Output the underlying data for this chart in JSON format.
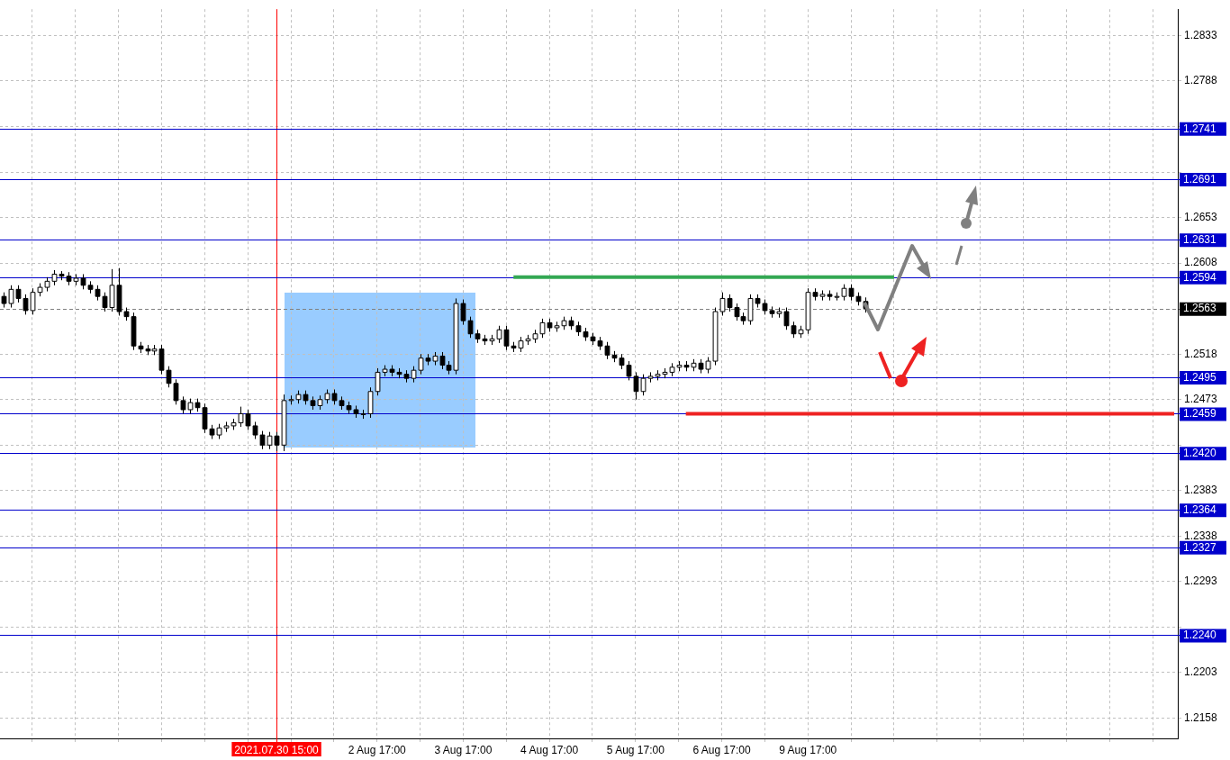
{
  "chart_data": {
    "type": "candlestick",
    "categories": [
      null,
      null,
      null,
      null,
      null,
      null,
      null,
      null,
      null,
      null,
      null,
      null,
      null,
      null,
      null,
      null,
      null,
      null,
      null,
      null,
      null,
      null,
      null,
      null,
      null,
      null,
      null,
      null,
      null,
      null,
      null,
      null,
      null,
      null,
      null,
      null,
      null,
      null,
      "2021.07.30 15:00",
      null,
      null,
      null,
      null,
      null,
      null,
      null,
      null,
      null,
      null,
      null,
      null,
      null,
      "2 Aug 17:00",
      null,
      null,
      null,
      null,
      null,
      null,
      null,
      null,
      null,
      null,
      null,
      "3 Aug 17:00",
      null,
      null,
      null,
      null,
      null,
      null,
      null,
      null,
      null,
      null,
      null,
      "4 Aug 17:00",
      null,
      null,
      null,
      null,
      null,
      null,
      null,
      null,
      null,
      null,
      null,
      "5 Aug 17:00",
      null,
      null,
      null,
      null,
      null,
      null,
      null,
      null,
      null,
      null,
      null,
      "6 Aug 17:00",
      null,
      null,
      null,
      null,
      null,
      null,
      null,
      null,
      null,
      null,
      null,
      "9 Aug 17:00",
      null,
      null,
      null,
      null,
      null,
      null,
      null,
      null,
      null,
      null,
      null,
      null,
      null,
      null,
      null,
      null,
      null,
      null,
      null,
      null,
      null,
      null,
      null,
      null,
      null,
      null,
      null,
      null,
      null,
      null,
      null,
      null,
      null,
      null,
      null,
      null,
      null,
      null,
      null,
      null,
      null,
      null,
      null,
      null,
      null,
      null,
      null,
      null,
      null,
      null,
      null
    ],
    "ohlc": [
      [
        1.2575,
        1.2579,
        1.2564,
        1.2568
      ],
      [
        1.2568,
        1.2586,
        1.2564,
        1.2582
      ],
      [
        1.2582,
        1.2586,
        1.2569,
        1.2573
      ],
      [
        1.2573,
        1.2577,
        1.2557,
        1.2561
      ],
      [
        1.2561,
        1.2583,
        1.2557,
        1.2579
      ],
      [
        1.2579,
        1.2588,
        1.2575,
        1.2584
      ],
      [
        1.2584,
        1.2594,
        1.258,
        1.259
      ],
      [
        1.259,
        1.2601,
        1.2586,
        1.2597
      ],
      [
        1.2597,
        1.26,
        1.2591,
        1.2595
      ],
      [
        1.2595,
        1.2599,
        1.2586,
        1.259
      ],
      [
        1.259,
        1.2597,
        1.2586,
        1.2593
      ],
      [
        1.2593,
        1.2597,
        1.2582,
        1.2586
      ],
      [
        1.2586,
        1.259,
        1.2578,
        1.2582
      ],
      [
        1.2582,
        1.2586,
        1.2571,
        1.2575
      ],
      [
        1.2575,
        1.2579,
        1.256,
        1.2564
      ],
      [
        1.2564,
        1.2602,
        1.256,
        1.2586
      ],
      [
        1.2586,
        1.2603,
        1.2556,
        1.256
      ],
      [
        1.256,
        1.2564,
        1.2551,
        1.2555
      ],
      [
        1.2555,
        1.2559,
        1.2522,
        1.2526
      ],
      [
        1.2526,
        1.253,
        1.2519,
        1.2523
      ],
      [
        1.2523,
        1.2527,
        1.2517,
        1.2521
      ],
      [
        1.2521,
        1.2527,
        1.2517,
        1.2523
      ],
      [
        1.2523,
        1.2527,
        1.2498,
        1.2502
      ],
      [
        1.2502,
        1.2506,
        1.2485,
        1.2489
      ],
      [
        1.2489,
        1.2493,
        1.2468,
        1.2472
      ],
      [
        1.2472,
        1.2476,
        1.2459,
        1.2463
      ],
      [
        1.2463,
        1.2474,
        1.2459,
        1.247
      ],
      [
        1.247,
        1.2474,
        1.2461,
        1.2465
      ],
      [
        1.2465,
        1.2469,
        1.244,
        1.2444
      ],
      [
        1.2444,
        1.2448,
        1.2434,
        1.2438
      ],
      [
        1.2438,
        1.2449,
        1.2434,
        1.2445
      ],
      [
        1.2445,
        1.2451,
        1.2441,
        1.2447
      ],
      [
        1.2447,
        1.2454,
        1.2443,
        1.245
      ],
      [
        1.245,
        1.2466,
        1.2446,
        1.2459
      ],
      [
        1.2459,
        1.2463,
        1.2443,
        1.2447
      ],
      [
        1.2447,
        1.2451,
        1.2434,
        1.2438
      ],
      [
        1.2438,
        1.2442,
        1.2424,
        1.2428
      ],
      [
        1.2428,
        1.2441,
        1.2424,
        1.2437
      ],
      [
        1.2437,
        1.2441,
        1.2422,
        1.2428
      ],
      [
        1.2428,
        1.2478,
        1.2422,
        1.2472
      ],
      [
        1.2472,
        1.2477,
        1.2468,
        1.2473
      ],
      [
        1.2473,
        1.2482,
        1.2469,
        1.2478
      ],
      [
        1.2478,
        1.2482,
        1.2468,
        1.2472
      ],
      [
        1.2472,
        1.2476,
        1.2463,
        1.2467
      ],
      [
        1.2467,
        1.2477,
        1.2463,
        1.2473
      ],
      [
        1.2473,
        1.2483,
        1.2469,
        1.2479
      ],
      [
        1.2479,
        1.2483,
        1.2468,
        1.2472
      ],
      [
        1.2472,
        1.2476,
        1.2463,
        1.2467
      ],
      [
        1.2467,
        1.2471,
        1.2459,
        1.2463
      ],
      [
        1.2463,
        1.2467,
        1.2455,
        1.2459
      ],
      [
        1.2459,
        1.2463,
        1.2454,
        1.2459
      ],
      [
        1.2459,
        1.2485,
        1.2455,
        1.2481
      ],
      [
        1.2481,
        1.2504,
        1.2477,
        1.25
      ],
      [
        1.25,
        1.2507,
        1.2496,
        1.2503
      ],
      [
        1.2503,
        1.2507,
        1.2496,
        1.25
      ],
      [
        1.25,
        1.2504,
        1.2494,
        1.2498
      ],
      [
        1.2498,
        1.2502,
        1.249,
        1.2494
      ],
      [
        1.2494,
        1.2506,
        1.249,
        1.2502
      ],
      [
        1.2502,
        1.2518,
        1.2498,
        1.2514
      ],
      [
        1.2514,
        1.2518,
        1.2507,
        1.2511
      ],
      [
        1.2511,
        1.252,
        1.2507,
        1.2516
      ],
      [
        1.2516,
        1.252,
        1.2503,
        1.2507
      ],
      [
        1.2507,
        1.2511,
        1.2498,
        1.2502
      ],
      [
        1.2502,
        1.2573,
        1.2498,
        1.2568
      ],
      [
        1.2568,
        1.2572,
        1.2547,
        1.2551
      ],
      [
        1.2551,
        1.2555,
        1.2534,
        1.2538
      ],
      [
        1.2538,
        1.2542,
        1.2529,
        1.2533
      ],
      [
        1.2533,
        1.2537,
        1.2527,
        1.2531
      ],
      [
        1.2531,
        1.2537,
        1.2527,
        1.2533
      ],
      [
        1.2533,
        1.2546,
        1.2529,
        1.2542
      ],
      [
        1.2542,
        1.2546,
        1.2522,
        1.2526
      ],
      [
        1.2526,
        1.253,
        1.252,
        1.2524
      ],
      [
        1.2524,
        1.2535,
        1.252,
        1.2531
      ],
      [
        1.2531,
        1.2537,
        1.2527,
        1.2533
      ],
      [
        1.2533,
        1.2542,
        1.2529,
        1.2538
      ],
      [
        1.2538,
        1.2553,
        1.2534,
        1.2549
      ],
      [
        1.2549,
        1.2553,
        1.254,
        1.2544
      ],
      [
        1.2544,
        1.255,
        1.254,
        1.2546
      ],
      [
        1.2546,
        1.2555,
        1.2542,
        1.2551
      ],
      [
        1.2551,
        1.2555,
        1.2542,
        1.2546
      ],
      [
        1.2546,
        1.255,
        1.2536,
        1.254
      ],
      [
        1.254,
        1.2544,
        1.2531,
        1.2535
      ],
      [
        1.2535,
        1.2539,
        1.2527,
        1.2531
      ],
      [
        1.2531,
        1.2535,
        1.2522,
        1.2526
      ],
      [
        1.2526,
        1.253,
        1.2513,
        1.2517
      ],
      [
        1.2517,
        1.2521,
        1.251,
        1.2514
      ],
      [
        1.2514,
        1.2518,
        1.2503,
        1.2507
      ],
      [
        1.2507,
        1.2511,
        1.2492,
        1.2496
      ],
      [
        1.2496,
        1.25,
        1.2473,
        1.2481
      ],
      [
        1.2481,
        1.2498,
        1.2477,
        1.2494
      ],
      [
        1.2494,
        1.25,
        1.249,
        1.2496
      ],
      [
        1.2496,
        1.2502,
        1.2492,
        1.2498
      ],
      [
        1.2498,
        1.2504,
        1.2494,
        1.25
      ],
      [
        1.25,
        1.2509,
        1.2496,
        1.2505
      ],
      [
        1.2505,
        1.2511,
        1.2501,
        1.2507
      ],
      [
        1.2507,
        1.2511,
        1.2501,
        1.2505
      ],
      [
        1.2505,
        1.2513,
        1.2501,
        1.2509
      ],
      [
        1.2509,
        1.2513,
        1.2499,
        1.2503
      ],
      [
        1.2503,
        1.2515,
        1.2499,
        1.2511
      ],
      [
        1.2511,
        1.2564,
        1.2507,
        1.256
      ],
      [
        1.256,
        1.2579,
        1.2556,
        1.2573
      ],
      [
        1.2573,
        1.2577,
        1.256,
        1.2564
      ],
      [
        1.2564,
        1.2568,
        1.2551,
        1.2555
      ],
      [
        1.2555,
        1.2559,
        1.2547,
        1.2551
      ],
      [
        1.2551,
        1.2577,
        1.2547,
        1.2573
      ],
      [
        1.2573,
        1.2577,
        1.2564,
        1.2568
      ],
      [
        1.2568,
        1.2572,
        1.2557,
        1.2561
      ],
      [
        1.2561,
        1.2565,
        1.2554,
        1.2558
      ],
      [
        1.2558,
        1.2564,
        1.2554,
        1.256
      ],
      [
        1.256,
        1.2564,
        1.2542,
        1.2546
      ],
      [
        1.2546,
        1.255,
        1.2534,
        1.2538
      ],
      [
        1.2538,
        1.2546,
        1.2534,
        1.2542
      ],
      [
        1.2542,
        1.2583,
        1.2538,
        1.2579
      ],
      [
        1.2579,
        1.2583,
        1.2571,
        1.2575
      ],
      [
        1.2575,
        1.2581,
        1.2571,
        1.2577
      ],
      [
        1.2577,
        1.2581,
        1.2571,
        1.2575
      ],
      [
        1.2575,
        1.2579,
        1.2571,
        1.2575
      ],
      [
        1.2575,
        1.2587,
        1.2571,
        1.2583
      ],
      [
        1.2583,
        1.2587,
        1.2571,
        1.2575
      ],
      [
        1.2575,
        1.2579,
        1.2566,
        1.257
      ],
      [
        1.257,
        1.2574,
        1.2559,
        1.2563
      ],
      null,
      null,
      null,
      null,
      null,
      null,
      null,
      null,
      null,
      null,
      null,
      null,
      null,
      null,
      null,
      null,
      null,
      null,
      null,
      null,
      null,
      null,
      null,
      null,
      null,
      null,
      null,
      null,
      null,
      null,
      null,
      null,
      null,
      null,
      null,
      null,
      null,
      null,
      null,
      null,
      null,
      null,
      null
    ],
    "series": [
      {
        "type": "line",
        "color": "#33a853",
        "values": [
          null,
          null,
          null,
          null,
          null,
          null,
          null,
          null,
          null,
          null,
          null,
          null,
          null,
          null,
          null,
          null,
          null,
          null,
          null,
          null,
          null,
          null,
          null,
          null,
          null,
          null,
          null,
          null,
          null,
          null,
          null,
          null,
          null,
          null,
          null,
          null,
          null,
          null,
          null,
          null,
          null,
          null,
          null,
          null,
          null,
          null,
          null,
          null,
          null,
          null,
          null,
          null,
          null,
          null,
          null,
          null,
          null,
          null,
          null,
          null,
          null,
          null,
          null,
          null,
          null,
          null,
          null,
          null,
          null,
          null,
          null,
          1.2594,
          1.2594,
          1.2594,
          1.2594,
          1.2594,
          1.2594,
          1.2594,
          1.2594,
          1.2594,
          1.2594,
          1.2594,
          1.2594,
          1.2594,
          1.2594,
          1.2594,
          1.2594,
          1.2594,
          1.2594,
          1.2594,
          1.2594,
          1.2594,
          1.2594,
          1.2594,
          1.2594,
          1.2594,
          1.2594,
          1.2594,
          1.2594,
          1.2594,
          1.2594,
          1.2594,
          1.2594,
          1.2594,
          1.2594,
          1.2594,
          1.2594,
          1.2594,
          1.2594,
          1.2594,
          1.2594,
          1.2594,
          1.2594,
          1.2594,
          1.2594,
          1.2594,
          1.2594,
          1.2594,
          1.2594,
          1.2594,
          1.2594,
          1.2594,
          1.2594,
          1.2594,
          1.2594,
          null,
          null,
          null,
          null,
          null,
          null,
          null,
          null,
          null,
          null,
          null,
          null,
          null,
          null,
          null,
          null,
          null,
          null,
          null,
          null,
          null,
          null,
          null,
          null,
          null,
          null,
          null,
          null,
          null,
          null,
          null,
          null,
          null,
          null,
          null,
          null,
          null,
          null,
          null
        ]
      },
      {
        "type": "line",
        "color": "#ee2222",
        "values": [
          null,
          null,
          null,
          null,
          null,
          null,
          null,
          null,
          null,
          null,
          null,
          null,
          null,
          null,
          null,
          null,
          null,
          null,
          null,
          null,
          null,
          null,
          null,
          null,
          null,
          null,
          null,
          null,
          null,
          null,
          null,
          null,
          null,
          null,
          null,
          null,
          null,
          null,
          null,
          null,
          null,
          null,
          null,
          null,
          null,
          null,
          null,
          null,
          null,
          null,
          null,
          null,
          null,
          null,
          null,
          null,
          null,
          null,
          null,
          null,
          null,
          null,
          null,
          null,
          null,
          null,
          null,
          null,
          null,
          null,
          null,
          null,
          null,
          null,
          null,
          null,
          null,
          null,
          null,
          null,
          null,
          null,
          null,
          null,
          null,
          null,
          null,
          null,
          null,
          null,
          null,
          null,
          null,
          null,
          null,
          1.2459,
          1.2459,
          1.2459,
          1.2459,
          1.2459,
          1.2459,
          1.2459,
          1.2459,
          1.2459,
          1.2459,
          1.2459,
          1.2459,
          1.2459,
          1.2459,
          1.2459,
          1.2459,
          1.2459,
          1.2459,
          1.2459,
          1.2459,
          1.2459,
          1.2459,
          1.2459,
          1.2459,
          1.2459,
          1.2459,
          1.2459,
          1.2459,
          1.2459,
          1.2459,
          1.2459,
          1.2459,
          1.2459,
          1.2459,
          1.2459,
          1.2459,
          1.2459,
          1.2459,
          1.2459,
          1.2459,
          1.2459,
          1.2459,
          1.2459,
          1.2459,
          1.2459,
          1.2459,
          1.2459,
          1.2459,
          1.2459,
          1.2459,
          1.2459,
          1.2459,
          1.2459,
          1.2459,
          1.2459,
          1.2459,
          1.2459,
          1.2459,
          1.2459,
          1.2459,
          1.2459,
          1.2459,
          1.2459,
          1.2459,
          1.2459,
          1.2459,
          1.2459,
          1.2459,
          1.2459
        ]
      }
    ],
    "ylim": [
      1.2138,
      1.2859
    ],
    "yticks": [
      1.2158,
      1.2203,
      {
        "value": 1.2248,
        "label": null
      },
      1.2293,
      1.2338,
      1.2383,
      {
        "value": 1.2428,
        "label": null
      },
      1.2473,
      1.2518,
      1.2608,
      1.2653,
      {
        "value": 1.2698,
        "label": null
      },
      {
        "value": 1.2743,
        "label": null
      },
      1.2788,
      1.2833
    ],
    "grid": true,
    "ref_lines": [
      {
        "axis": "x",
        "value": "2021.07.30 15:00",
        "color": "#ff0000"
      },
      {
        "axis": "y",
        "value": 1.2741,
        "label": "1.2741",
        "color": "#0000cc"
      },
      {
        "axis": "y",
        "value": 1.2691,
        "label": "1.2691",
        "color": "#0000cc"
      },
      {
        "axis": "y",
        "value": 1.2631,
        "label": "1.2631",
        "color": "#0000cc"
      },
      {
        "axis": "y",
        "value": 1.2594,
        "label": "1.2594",
        "color": "#0000cc"
      },
      {
        "axis": "y",
        "value": 1.2563,
        "label": "1.2563",
        "color": "#808080",
        "line_style": "dashed"
      },
      {
        "axis": "y",
        "value": 1.2495,
        "label": "1.2495",
        "color": "#0000cc"
      },
      {
        "axis": "y",
        "value": 1.2459,
        "label": "1.2459",
        "color": "#0000cc"
      },
      {
        "axis": "y",
        "value": 1.242,
        "label": "1.2420",
        "color": "#0000cc"
      },
      {
        "axis": "y",
        "value": 1.2364,
        "label": "1.2364",
        "color": "#0000cc"
      },
      {
        "axis": "y",
        "value": 1.2327,
        "label": "1.2327",
        "color": "#0000cc"
      },
      {
        "axis": "y",
        "value": 1.224,
        "label": "1.2240",
        "color": "#0000cc"
      }
    ]
  }
}
